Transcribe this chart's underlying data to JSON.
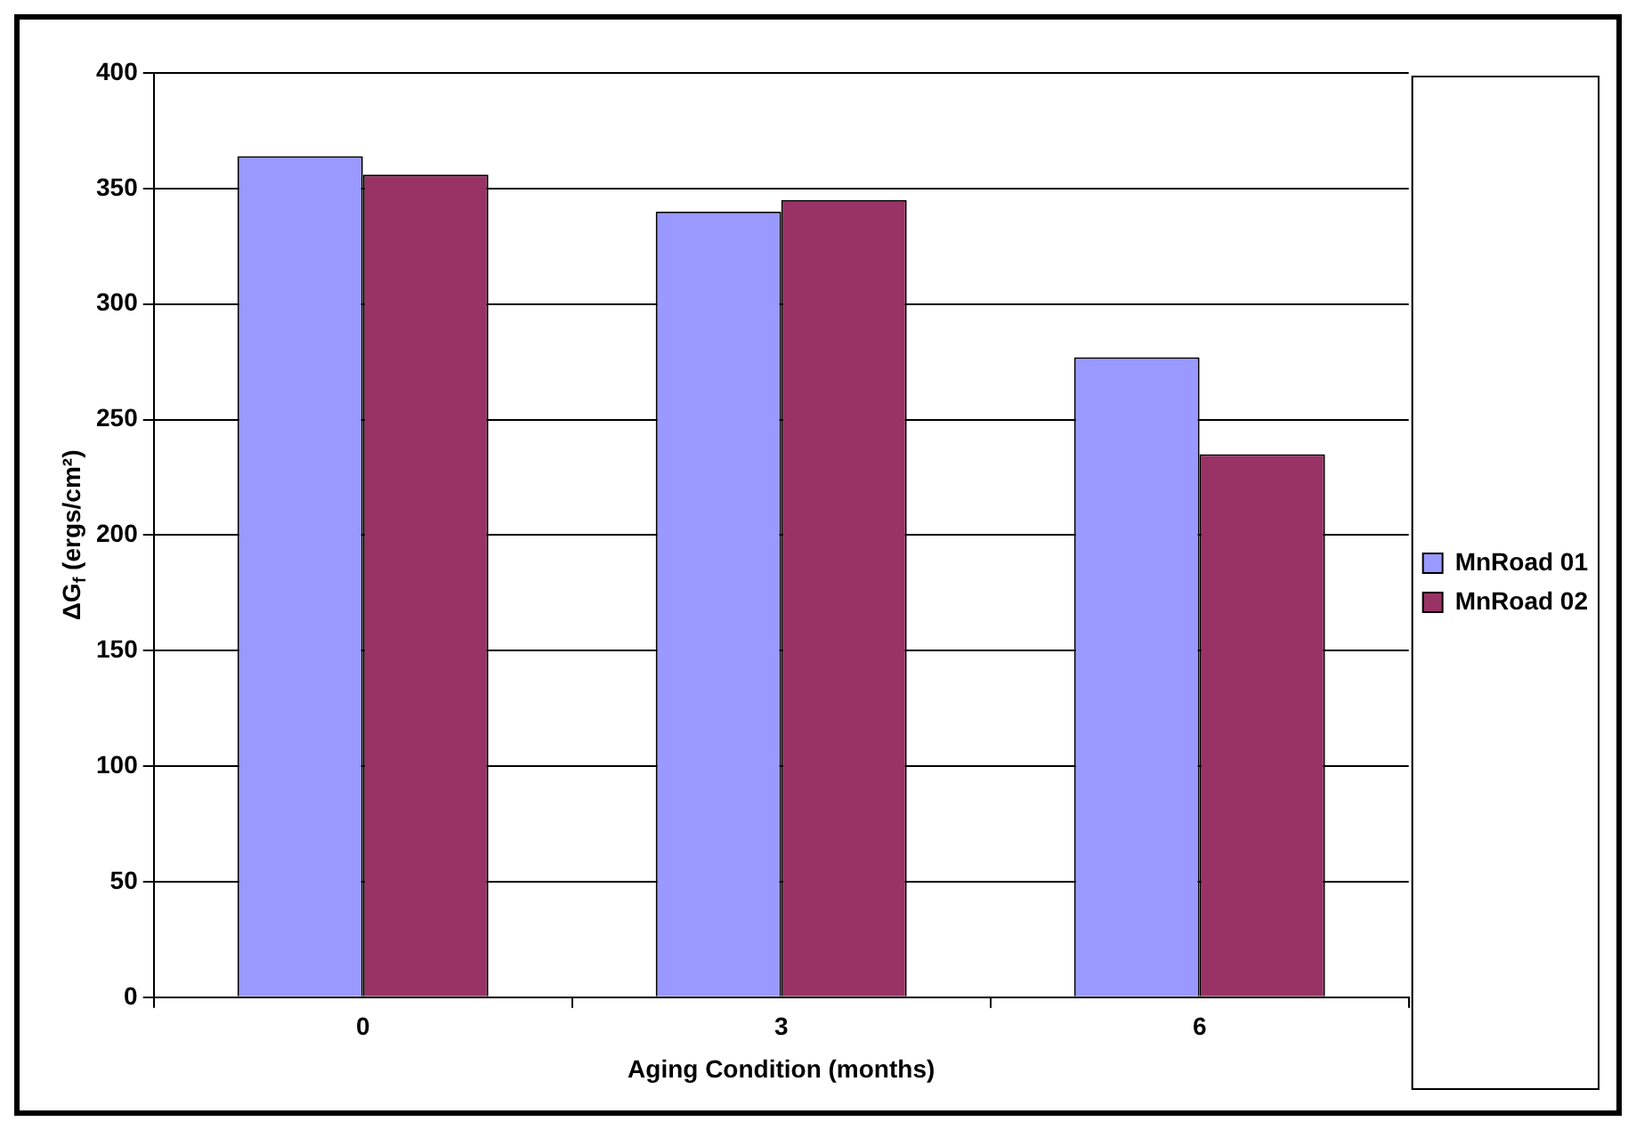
{
  "chart_data": {
    "type": "bar",
    "xlabel": "Aging Condition (months)",
    "ylabel": "ΔG$_{f}$ (ergs/cm²)",
    "categories": [
      "0",
      "3",
      "6"
    ],
    "series": [
      {
        "name": "MnRoad 01",
        "color": "#9999ff",
        "values": [
          364,
          340,
          277
        ]
      },
      {
        "name": "MnRoad 02",
        "color": "#993366",
        "values": [
          356,
          345,
          235
        ]
      }
    ],
    "ylim": [
      0,
      400
    ],
    "yticks": [
      0,
      50,
      100,
      150,
      200,
      250,
      300,
      350,
      400
    ],
    "grid": "y",
    "legend": "right"
  }
}
